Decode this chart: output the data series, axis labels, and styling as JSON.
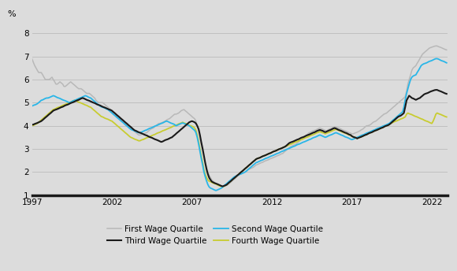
{
  "ylabel": "%",
  "ylim": [
    1,
    8.5
  ],
  "yticks": [
    1,
    2,
    3,
    4,
    5,
    6,
    7,
    8
  ],
  "xlim": [
    1997,
    2023.0
  ],
  "xticks": [
    1997,
    2002,
    2007,
    2012,
    2017,
    2022
  ],
  "background_color": "#dcdcdc",
  "gridcolor": "#c0c0c0",
  "series": {
    "Q1": {
      "label": "First Wage Quartile",
      "color": "#b8b8b8",
      "lw": 1.1
    },
    "Q2": {
      "label": "Second Wage Quartile",
      "color": "#29b6e8",
      "lw": 1.3
    },
    "Q3": {
      "label": "Third Wage Quartile",
      "color": "#1a1a1a",
      "lw": 1.5
    },
    "Q4": {
      "label": "Fourth Wage Quartile",
      "color": "#c8cc30",
      "lw": 1.3
    }
  },
  "data": {
    "years": [
      1997.0,
      1997.08,
      1997.17,
      1997.25,
      1997.33,
      1997.42,
      1997.5,
      1997.58,
      1997.67,
      1997.75,
      1997.83,
      1997.92,
      1998.0,
      1998.08,
      1998.17,
      1998.25,
      1998.33,
      1998.42,
      1998.5,
      1998.58,
      1998.67,
      1998.75,
      1998.83,
      1998.92,
      1999.0,
      1999.08,
      1999.17,
      1999.25,
      1999.33,
      1999.42,
      1999.5,
      1999.58,
      1999.67,
      1999.75,
      1999.83,
      1999.92,
      2000.0,
      2000.08,
      2000.17,
      2000.25,
      2000.33,
      2000.42,
      2000.5,
      2000.58,
      2000.67,
      2000.75,
      2000.83,
      2000.92,
      2001.0,
      2001.08,
      2001.17,
      2001.25,
      2001.33,
      2001.42,
      2001.5,
      2001.58,
      2001.67,
      2001.75,
      2001.83,
      2001.92,
      2002.0,
      2002.08,
      2002.17,
      2002.25,
      2002.33,
      2002.42,
      2002.5,
      2002.58,
      2002.67,
      2002.75,
      2002.83,
      2002.92,
      2003.0,
      2003.08,
      2003.17,
      2003.25,
      2003.33,
      2003.42,
      2003.5,
      2003.58,
      2003.67,
      2003.75,
      2003.83,
      2003.92,
      2004.0,
      2004.08,
      2004.17,
      2004.25,
      2004.33,
      2004.42,
      2004.5,
      2004.58,
      2004.67,
      2004.75,
      2004.83,
      2004.92,
      2005.0,
      2005.08,
      2005.17,
      2005.25,
      2005.33,
      2005.42,
      2005.5,
      2005.58,
      2005.67,
      2005.75,
      2005.83,
      2005.92,
      2006.0,
      2006.08,
      2006.17,
      2006.25,
      2006.33,
      2006.42,
      2006.5,
      2006.58,
      2006.67,
      2006.75,
      2006.83,
      2006.92,
      2007.0,
      2007.08,
      2007.17,
      2007.25,
      2007.33,
      2007.42,
      2007.5,
      2007.58,
      2007.67,
      2007.75,
      2007.83,
      2007.92,
      2008.0,
      2008.08,
      2008.17,
      2008.25,
      2008.33,
      2008.42,
      2008.5,
      2008.58,
      2008.67,
      2008.75,
      2008.83,
      2008.92,
      2009.0,
      2009.08,
      2009.17,
      2009.25,
      2009.33,
      2009.42,
      2009.5,
      2009.58,
      2009.67,
      2009.75,
      2009.83,
      2009.92,
      2010.0,
      2010.08,
      2010.17,
      2010.25,
      2010.33,
      2010.42,
      2010.5,
      2010.58,
      2010.67,
      2010.75,
      2010.83,
      2010.92,
      2011.0,
      2011.08,
      2011.17,
      2011.25,
      2011.33,
      2011.42,
      2011.5,
      2011.58,
      2011.67,
      2011.75,
      2011.83,
      2011.92,
      2012.0,
      2012.08,
      2012.17,
      2012.25,
      2012.33,
      2012.42,
      2012.5,
      2012.58,
      2012.67,
      2012.75,
      2012.83,
      2012.92,
      2013.0,
      2013.08,
      2013.17,
      2013.25,
      2013.33,
      2013.42,
      2013.5,
      2013.58,
      2013.67,
      2013.75,
      2013.83,
      2013.92,
      2014.0,
      2014.08,
      2014.17,
      2014.25,
      2014.33,
      2014.42,
      2014.5,
      2014.58,
      2014.67,
      2014.75,
      2014.83,
      2014.92,
      2015.0,
      2015.08,
      2015.17,
      2015.25,
      2015.33,
      2015.42,
      2015.5,
      2015.58,
      2015.67,
      2015.75,
      2015.83,
      2015.92,
      2016.0,
      2016.08,
      2016.17,
      2016.25,
      2016.33,
      2016.42,
      2016.5,
      2016.58,
      2016.67,
      2016.75,
      2016.83,
      2016.92,
      2017.0,
      2017.08,
      2017.17,
      2017.25,
      2017.33,
      2017.42,
      2017.5,
      2017.58,
      2017.67,
      2017.75,
      2017.83,
      2017.92,
      2018.0,
      2018.08,
      2018.17,
      2018.25,
      2018.33,
      2018.42,
      2018.5,
      2018.58,
      2018.67,
      2018.75,
      2018.83,
      2018.92,
      2019.0,
      2019.08,
      2019.17,
      2019.25,
      2019.33,
      2019.42,
      2019.5,
      2019.58,
      2019.67,
      2019.75,
      2019.83,
      2019.92,
      2020.0,
      2020.08,
      2020.17,
      2020.25,
      2020.33,
      2020.42,
      2020.5,
      2020.58,
      2020.67,
      2020.75,
      2020.83,
      2020.92,
      2021.0,
      2021.08,
      2021.17,
      2021.25,
      2021.33,
      2021.42,
      2021.5,
      2021.58,
      2021.67,
      2021.75,
      2021.83,
      2021.92,
      2022.0,
      2022.08,
      2022.17,
      2022.25,
      2022.33,
      2022.42,
      2022.5,
      2022.58,
      2022.67,
      2022.75,
      2022.83,
      2022.92
    ],
    "Q1": [
      6.9,
      6.75,
      6.6,
      6.5,
      6.4,
      6.3,
      6.3,
      6.3,
      6.2,
      6.1,
      6.0,
      6.0,
      6.0,
      6.0,
      6.05,
      6.1,
      6.0,
      5.9,
      5.8,
      5.8,
      5.85,
      5.9,
      5.85,
      5.8,
      5.7,
      5.7,
      5.75,
      5.8,
      5.85,
      5.9,
      5.85,
      5.8,
      5.75,
      5.7,
      5.65,
      5.6,
      5.6,
      5.6,
      5.55,
      5.5,
      5.45,
      5.4,
      5.4,
      5.4,
      5.35,
      5.3,
      5.25,
      5.2,
      5.1,
      5.05,
      5.0,
      5.0,
      5.0,
      5.0,
      4.95,
      4.9,
      4.85,
      4.8,
      4.75,
      4.7,
      4.6,
      4.55,
      4.5,
      4.45,
      4.4,
      4.35,
      4.3,
      4.25,
      4.2,
      4.15,
      4.1,
      4.05,
      4.0,
      3.95,
      3.9,
      3.85,
      3.8,
      3.75,
      3.7,
      3.65,
      3.6,
      3.6,
      3.62,
      3.65,
      3.65,
      3.68,
      3.7,
      3.75,
      3.8,
      3.85,
      3.88,
      3.9,
      3.95,
      4.0,
      4.05,
      4.1,
      4.1,
      4.12,
      4.15,
      4.18,
      4.2,
      4.25,
      4.28,
      4.3,
      4.35,
      4.4,
      4.45,
      4.5,
      4.5,
      4.52,
      4.55,
      4.6,
      4.65,
      4.68,
      4.7,
      4.65,
      4.6,
      4.55,
      4.5,
      4.45,
      4.4,
      4.35,
      4.3,
      4.2,
      4.0,
      3.8,
      3.5,
      3.2,
      2.9,
      2.65,
      2.4,
      2.2,
      2.0,
      1.85,
      1.75,
      1.65,
      1.6,
      1.55,
      1.5,
      1.45,
      1.42,
      1.4,
      1.38,
      1.37,
      1.38,
      1.4,
      1.42,
      1.45,
      1.5,
      1.55,
      1.6,
      1.65,
      1.7,
      1.75,
      1.8,
      1.85,
      1.9,
      1.92,
      1.95,
      1.98,
      2.0,
      2.05,
      2.1,
      2.12,
      2.15,
      2.18,
      2.2,
      2.25,
      2.3,
      2.32,
      2.35,
      2.38,
      2.4,
      2.42,
      2.45,
      2.48,
      2.5,
      2.52,
      2.55,
      2.58,
      2.6,
      2.62,
      2.65,
      2.68,
      2.7,
      2.72,
      2.75,
      2.78,
      2.8,
      2.85,
      2.9,
      2.95,
      3.0,
      3.05,
      3.1,
      3.12,
      3.15,
      3.18,
      3.2,
      3.25,
      3.3,
      3.35,
      3.4,
      3.45,
      3.5,
      3.55,
      3.6,
      3.65,
      3.7,
      3.72,
      3.75,
      3.78,
      3.8,
      3.82,
      3.85,
      3.88,
      3.9,
      3.88,
      3.85,
      3.82,
      3.8,
      3.78,
      3.82,
      3.85,
      3.88,
      3.9,
      3.92,
      3.95,
      3.95,
      3.92,
      3.9,
      3.88,
      3.85,
      3.82,
      3.8,
      3.78,
      3.75,
      3.72,
      3.7,
      3.68,
      3.65,
      3.65,
      3.68,
      3.7,
      3.72,
      3.75,
      3.78,
      3.82,
      3.85,
      3.9,
      3.95,
      4.0,
      4.0,
      4.02,
      4.05,
      4.1,
      4.15,
      4.18,
      4.2,
      4.25,
      4.3,
      4.35,
      4.4,
      4.45,
      4.5,
      4.52,
      4.55,
      4.6,
      4.65,
      4.7,
      4.75,
      4.8,
      4.85,
      4.9,
      4.95,
      5.0,
      5.05,
      5.1,
      5.15,
      5.2,
      5.25,
      5.5,
      5.8,
      6.0,
      6.2,
      6.4,
      6.5,
      6.55,
      6.6,
      6.7,
      6.8,
      6.9,
      7.0,
      7.1,
      7.15,
      7.2,
      7.25,
      7.3,
      7.35,
      7.38,
      7.4,
      7.42,
      7.44,
      7.45,
      7.45,
      7.42,
      7.4,
      7.38,
      7.35,
      7.32,
      7.3,
      7.28
    ],
    "Q2": [
      4.85,
      4.88,
      4.9,
      4.92,
      4.95,
      5.0,
      5.05,
      5.1,
      5.12,
      5.15,
      5.18,
      5.2,
      5.2,
      5.22,
      5.25,
      5.28,
      5.3,
      5.28,
      5.25,
      5.22,
      5.2,
      5.18,
      5.15,
      5.12,
      5.1,
      5.08,
      5.05,
      5.02,
      5.0,
      5.02,
      5.05,
      5.08,
      5.1,
      5.12,
      5.15,
      5.18,
      5.2,
      5.22,
      5.25,
      5.28,
      5.3,
      5.28,
      5.25,
      5.22,
      5.2,
      5.15,
      5.1,
      5.05,
      5.0,
      4.95,
      4.9,
      4.85,
      4.82,
      4.8,
      4.78,
      4.75,
      4.72,
      4.7,
      4.65,
      4.6,
      4.55,
      4.5,
      4.45,
      4.4,
      4.35,
      4.3,
      4.25,
      4.2,
      4.15,
      4.1,
      4.05,
      4.0,
      3.95,
      3.9,
      3.85,
      3.82,
      3.8,
      3.78,
      3.75,
      3.72,
      3.7,
      3.7,
      3.72,
      3.75,
      3.78,
      3.8,
      3.82,
      3.85,
      3.88,
      3.9,
      3.92,
      3.95,
      3.98,
      4.0,
      4.02,
      4.05,
      4.08,
      4.1,
      4.12,
      4.15,
      4.18,
      4.2,
      4.18,
      4.15,
      4.12,
      4.1,
      4.08,
      4.05,
      4.0,
      4.02,
      4.05,
      4.08,
      4.1,
      4.12,
      4.1,
      4.08,
      4.05,
      4.02,
      4.0,
      3.95,
      3.9,
      3.85,
      3.8,
      3.7,
      3.5,
      3.2,
      2.9,
      2.6,
      2.3,
      2.0,
      1.8,
      1.6,
      1.45,
      1.35,
      1.3,
      1.28,
      1.25,
      1.22,
      1.2,
      1.22,
      1.25,
      1.28,
      1.3,
      1.35,
      1.4,
      1.45,
      1.5,
      1.55,
      1.6,
      1.65,
      1.7,
      1.75,
      1.8,
      1.82,
      1.85,
      1.88,
      1.9,
      1.92,
      1.95,
      1.98,
      2.0,
      2.05,
      2.1,
      2.15,
      2.2,
      2.25,
      2.3,
      2.35,
      2.4,
      2.42,
      2.45,
      2.48,
      2.5,
      2.52,
      2.55,
      2.58,
      2.6,
      2.62,
      2.65,
      2.68,
      2.7,
      2.72,
      2.75,
      2.78,
      2.8,
      2.82,
      2.85,
      2.88,
      2.9,
      2.92,
      2.95,
      2.98,
      3.0,
      3.02,
      3.05,
      3.08,
      3.1,
      3.12,
      3.15,
      3.18,
      3.2,
      3.22,
      3.25,
      3.28,
      3.3,
      3.32,
      3.35,
      3.38,
      3.4,
      3.42,
      3.45,
      3.48,
      3.5,
      3.52,
      3.55,
      3.58,
      3.6,
      3.58,
      3.55,
      3.52,
      3.5,
      3.52,
      3.55,
      3.58,
      3.6,
      3.62,
      3.65,
      3.68,
      3.7,
      3.68,
      3.65,
      3.62,
      3.6,
      3.58,
      3.55,
      3.52,
      3.5,
      3.48,
      3.45,
      3.42,
      3.4,
      3.42,
      3.45,
      3.48,
      3.5,
      3.52,
      3.55,
      3.58,
      3.6,
      3.62,
      3.65,
      3.68,
      3.7,
      3.72,
      3.75,
      3.78,
      3.8,
      3.82,
      3.85,
      3.88,
      3.9,
      3.92,
      3.95,
      3.98,
      4.0,
      4.02,
      4.05,
      4.08,
      4.1,
      4.15,
      4.2,
      4.25,
      4.3,
      4.35,
      4.4,
      4.45,
      4.5,
      4.55,
      4.6,
      4.8,
      5.1,
      5.4,
      5.6,
      5.8,
      6.0,
      6.1,
      6.15,
      6.18,
      6.2,
      6.3,
      6.4,
      6.5,
      6.6,
      6.65,
      6.68,
      6.7,
      6.72,
      6.75,
      6.78,
      6.8,
      6.82,
      6.85,
      6.88,
      6.9,
      6.9,
      6.88,
      6.85,
      6.82,
      6.8,
      6.78,
      6.75,
      6.72
    ],
    "Q3": [
      4.05,
      4.05,
      4.08,
      4.1,
      4.12,
      4.15,
      4.18,
      4.2,
      4.25,
      4.3,
      4.35,
      4.4,
      4.45,
      4.5,
      4.55,
      4.6,
      4.65,
      4.68,
      4.7,
      4.72,
      4.75,
      4.78,
      4.8,
      4.82,
      4.85,
      4.88,
      4.9,
      4.92,
      4.95,
      4.98,
      5.0,
      5.02,
      5.05,
      5.08,
      5.1,
      5.12,
      5.15,
      5.18,
      5.2,
      5.18,
      5.15,
      5.12,
      5.1,
      5.08,
      5.05,
      5.02,
      5.0,
      4.98,
      4.95,
      4.92,
      4.9,
      4.88,
      4.85,
      4.82,
      4.8,
      4.78,
      4.75,
      4.72,
      4.7,
      4.68,
      4.65,
      4.6,
      4.55,
      4.5,
      4.45,
      4.4,
      4.35,
      4.3,
      4.25,
      4.2,
      4.15,
      4.1,
      4.05,
      4.0,
      3.95,
      3.9,
      3.85,
      3.8,
      3.78,
      3.75,
      3.72,
      3.7,
      3.68,
      3.65,
      3.62,
      3.6,
      3.58,
      3.55,
      3.52,
      3.5,
      3.48,
      3.45,
      3.42,
      3.4,
      3.38,
      3.35,
      3.32,
      3.3,
      3.32,
      3.35,
      3.38,
      3.4,
      3.42,
      3.45,
      3.48,
      3.5,
      3.55,
      3.6,
      3.65,
      3.7,
      3.75,
      3.8,
      3.85,
      3.9,
      3.95,
      4.0,
      4.05,
      4.1,
      4.15,
      4.18,
      4.2,
      4.18,
      4.15,
      4.1,
      4.0,
      3.85,
      3.6,
      3.3,
      3.0,
      2.7,
      2.4,
      2.1,
      1.9,
      1.75,
      1.65,
      1.58,
      1.55,
      1.52,
      1.5,
      1.48,
      1.45,
      1.42,
      1.4,
      1.38,
      1.4,
      1.42,
      1.45,
      1.5,
      1.55,
      1.6,
      1.65,
      1.7,
      1.75,
      1.8,
      1.85,
      1.9,
      1.95,
      2.0,
      2.05,
      2.1,
      2.15,
      2.2,
      2.25,
      2.3,
      2.35,
      2.4,
      2.45,
      2.5,
      2.55,
      2.58,
      2.6,
      2.62,
      2.65,
      2.68,
      2.7,
      2.72,
      2.75,
      2.78,
      2.8,
      2.82,
      2.85,
      2.88,
      2.9,
      2.92,
      2.95,
      2.98,
      3.0,
      3.02,
      3.05,
      3.08,
      3.1,
      3.15,
      3.2,
      3.25,
      3.28,
      3.3,
      3.32,
      3.35,
      3.38,
      3.4,
      3.42,
      3.45,
      3.48,
      3.5,
      3.52,
      3.55,
      3.58,
      3.6,
      3.62,
      3.65,
      3.68,
      3.7,
      3.72,
      3.75,
      3.78,
      3.8,
      3.82,
      3.8,
      3.78,
      3.75,
      3.72,
      3.75,
      3.78,
      3.8,
      3.82,
      3.85,
      3.88,
      3.9,
      3.88,
      3.85,
      3.82,
      3.8,
      3.78,
      3.75,
      3.72,
      3.7,
      3.68,
      3.65,
      3.62,
      3.6,
      3.55,
      3.52,
      3.5,
      3.48,
      3.45,
      3.48,
      3.5,
      3.52,
      3.55,
      3.58,
      3.6,
      3.62,
      3.65,
      3.68,
      3.7,
      3.72,
      3.75,
      3.78,
      3.8,
      3.82,
      3.85,
      3.88,
      3.9,
      3.92,
      3.95,
      3.98,
      4.0,
      4.02,
      4.05,
      4.1,
      4.15,
      4.2,
      4.25,
      4.3,
      4.35,
      4.4,
      4.42,
      4.45,
      4.5,
      4.55,
      4.8,
      5.1,
      5.2,
      5.3,
      5.25,
      5.2,
      5.18,
      5.15,
      5.12,
      5.15,
      5.18,
      5.2,
      5.25,
      5.3,
      5.35,
      5.38,
      5.4,
      5.42,
      5.45,
      5.48,
      5.5,
      5.52,
      5.54,
      5.55,
      5.55,
      5.52,
      5.5,
      5.48,
      5.45,
      5.42,
      5.4,
      5.38
    ],
    "Q4": [
      4.0,
      4.02,
      4.05,
      4.08,
      4.1,
      4.15,
      4.2,
      4.25,
      4.3,
      4.35,
      4.4,
      4.45,
      4.5,
      4.55,
      4.6,
      4.65,
      4.7,
      4.72,
      4.75,
      4.78,
      4.8,
      4.82,
      4.85,
      4.88,
      4.9,
      4.92,
      4.95,
      4.98,
      5.0,
      5.02,
      5.05,
      5.08,
      5.1,
      5.08,
      5.05,
      5.02,
      5.0,
      4.98,
      4.95,
      4.92,
      4.9,
      4.88,
      4.85,
      4.82,
      4.8,
      4.75,
      4.7,
      4.65,
      4.6,
      4.55,
      4.5,
      4.45,
      4.4,
      4.38,
      4.35,
      4.32,
      4.3,
      4.28,
      4.25,
      4.22,
      4.2,
      4.15,
      4.1,
      4.05,
      4.0,
      3.95,
      3.9,
      3.85,
      3.8,
      3.75,
      3.7,
      3.65,
      3.6,
      3.55,
      3.5,
      3.48,
      3.45,
      3.42,
      3.4,
      3.38,
      3.35,
      3.35,
      3.38,
      3.4,
      3.42,
      3.45,
      3.48,
      3.5,
      3.52,
      3.55,
      3.58,
      3.6,
      3.62,
      3.65,
      3.68,
      3.7,
      3.72,
      3.75,
      3.78,
      3.8,
      3.82,
      3.85,
      3.88,
      3.9,
      3.92,
      3.95,
      3.98,
      4.0,
      4.02,
      4.05,
      4.08,
      4.1,
      4.12,
      4.15,
      4.12,
      4.1,
      4.08,
      4.05,
      4.02,
      4.0,
      3.98,
      3.95,
      3.9,
      3.8,
      3.6,
      3.3,
      3.0,
      2.7,
      2.4,
      2.1,
      1.9,
      1.75,
      1.65,
      1.6,
      1.58,
      1.55,
      1.52,
      1.5,
      1.48,
      1.45,
      1.42,
      1.4,
      1.38,
      1.35,
      1.38,
      1.42,
      1.45,
      1.5,
      1.55,
      1.6,
      1.65,
      1.7,
      1.75,
      1.8,
      1.85,
      1.9,
      1.95,
      2.0,
      2.05,
      2.1,
      2.15,
      2.2,
      2.25,
      2.3,
      2.35,
      2.4,
      2.45,
      2.5,
      2.55,
      2.58,
      2.6,
      2.62,
      2.65,
      2.68,
      2.7,
      2.72,
      2.75,
      2.78,
      2.8,
      2.82,
      2.85,
      2.88,
      2.9,
      2.92,
      2.95,
      2.98,
      3.0,
      3.02,
      3.05,
      3.08,
      3.1,
      3.12,
      3.15,
      3.18,
      3.2,
      3.22,
      3.25,
      3.28,
      3.3,
      3.32,
      3.35,
      3.38,
      3.4,
      3.42,
      3.45,
      3.48,
      3.5,
      3.52,
      3.55,
      3.58,
      3.6,
      3.62,
      3.65,
      3.68,
      3.7,
      3.72,
      3.75,
      3.72,
      3.7,
      3.68,
      3.65,
      3.68,
      3.7,
      3.72,
      3.75,
      3.78,
      3.8,
      3.82,
      3.85,
      3.82,
      3.8,
      3.78,
      3.75,
      3.72,
      3.7,
      3.68,
      3.65,
      3.62,
      3.6,
      3.58,
      3.55,
      3.52,
      3.5,
      3.48,
      3.45,
      3.48,
      3.5,
      3.52,
      3.55,
      3.58,
      3.6,
      3.62,
      3.65,
      3.68,
      3.7,
      3.72,
      3.75,
      3.78,
      3.8,
      3.82,
      3.85,
      3.88,
      3.9,
      3.92,
      3.95,
      3.98,
      4.0,
      4.02,
      4.05,
      4.1,
      4.12,
      4.15,
      4.18,
      4.2,
      4.22,
      4.25,
      4.28,
      4.3,
      4.32,
      4.35,
      4.38,
      4.5,
      4.55,
      4.52,
      4.5,
      4.48,
      4.45,
      4.42,
      4.4,
      4.38,
      4.35,
      4.32,
      4.3,
      4.28,
      4.25,
      4.22,
      4.2,
      4.18,
      4.15,
      4.12,
      4.1,
      4.2,
      4.35,
      4.5,
      4.55,
      4.52,
      4.5,
      4.48,
      4.45,
      4.42,
      4.4,
      4.38
    ]
  }
}
